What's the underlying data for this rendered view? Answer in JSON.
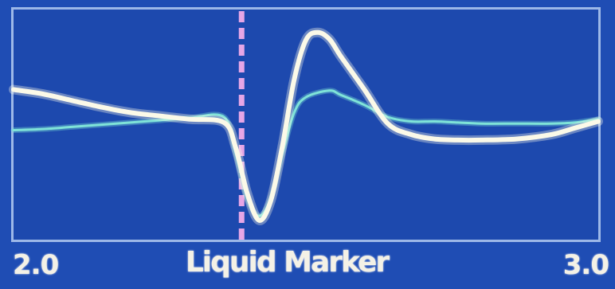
{
  "chart_data": {
    "type": "line",
    "title": "",
    "xlabel": "",
    "ylabel": "",
    "xlim": [
      2.0,
      3.0
    ],
    "ylim": [
      -1.0,
      1.0
    ],
    "x_tick_labels": [
      "2.0",
      "3.0"
    ],
    "marker": {
      "label": "Liquid Marker",
      "x": 2.39,
      "color": "#e6a6e6",
      "style": "dashed"
    },
    "series": [
      {
        "color": "#fbf9e8",
        "x": [
          2.0,
          2.05,
          2.1,
          2.15,
          2.2,
          2.25,
          2.3,
          2.36,
          2.38,
          2.4,
          2.42,
          2.44,
          2.46,
          2.48,
          2.5,
          2.52,
          2.54,
          2.56,
          2.6,
          2.64,
          2.68,
          2.72,
          2.76,
          2.8,
          2.86,
          2.92,
          2.96,
          3.0
        ],
        "y": [
          0.33,
          0.29,
          0.23,
          0.17,
          0.12,
          0.09,
          0.06,
          0.03,
          -0.2,
          -0.62,
          -0.86,
          -0.68,
          -0.18,
          0.42,
          0.78,
          0.85,
          0.79,
          0.63,
          0.33,
          0.02,
          -0.08,
          -0.12,
          -0.13,
          -0.13,
          -0.12,
          -0.08,
          -0.02,
          0.04
        ]
      },
      {
        "color": "#7fe3d8",
        "x": [
          2.0,
          2.05,
          2.1,
          2.15,
          2.2,
          2.25,
          2.3,
          2.36,
          2.38,
          2.4,
          2.42,
          2.44,
          2.46,
          2.48,
          2.5,
          2.54,
          2.56,
          2.6,
          2.64,
          2.68,
          2.72,
          2.76,
          2.8,
          2.86,
          2.92,
          2.96,
          3.0
        ],
        "y": [
          -0.04,
          -0.03,
          -0.01,
          0.01,
          0.03,
          0.05,
          0.07,
          0.08,
          -0.25,
          -0.66,
          -0.82,
          -0.66,
          -0.25,
          0.12,
          0.26,
          0.32,
          0.28,
          0.19,
          0.08,
          0.04,
          0.04,
          0.03,
          0.02,
          0.02,
          0.02,
          0.03,
          0.06
        ]
      }
    ]
  }
}
